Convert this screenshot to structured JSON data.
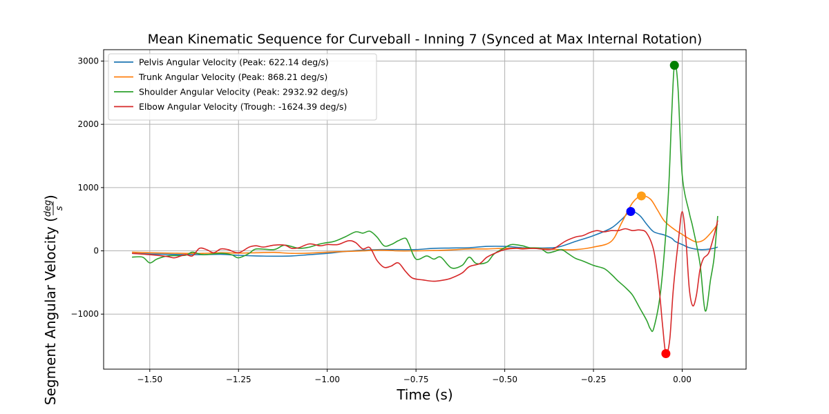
{
  "chart_data": {
    "type": "line",
    "title": "Mean Kinematic Sequence for Curveball - Inning 7 (Synced at Max Internal Rotation)",
    "xlabel": "Time (s)",
    "ylabel_prefix": "Segment Angular Velocity (",
    "ylabel_unit_num": "deg",
    "ylabel_unit_den": "s",
    "ylabel_suffix": ")",
    "xlim": [
      -1.63,
      0.18
    ],
    "ylim": [
      -1870,
      3180
    ],
    "xticks": [
      -1.5,
      -1.25,
      -1.0,
      -0.75,
      -0.5,
      -0.25,
      0.0
    ],
    "xtick_labels": [
      "−1.50",
      "−1.25",
      "−1.00",
      "−0.75",
      "−0.50",
      "−0.25",
      "0.00"
    ],
    "yticks": [
      -1000,
      0,
      1000,
      2000,
      3000
    ],
    "ytick_labels": [
      "−1000",
      "0",
      "1000",
      "2000",
      "3000"
    ],
    "grid": true,
    "legend_position": "top-left",
    "series": [
      {
        "name": "Pelvis Angular Velocity (Peak: 622.14 deg/s)",
        "color": "#1f77b4",
        "marker_color": "#0000ff",
        "peak": [
          -0.145,
          622.14
        ],
        "points": [
          [
            -1.55,
            -40
          ],
          [
            -1.5,
            -50
          ],
          [
            -1.45,
            -55
          ],
          [
            -1.4,
            -60
          ],
          [
            -1.35,
            -60
          ],
          [
            -1.3,
            -55
          ],
          [
            -1.25,
            -70
          ],
          [
            -1.2,
            -80
          ],
          [
            -1.15,
            -85
          ],
          [
            -1.1,
            -80
          ],
          [
            -1.05,
            -60
          ],
          [
            -1.0,
            -40
          ],
          [
            -0.95,
            -10
          ],
          [
            -0.9,
            10
          ],
          [
            -0.85,
            20
          ],
          [
            -0.8,
            20
          ],
          [
            -0.75,
            20
          ],
          [
            -0.7,
            40
          ],
          [
            -0.65,
            45
          ],
          [
            -0.6,
            50
          ],
          [
            -0.55,
            70
          ],
          [
            -0.5,
            70
          ],
          [
            -0.45,
            50
          ],
          [
            -0.4,
            45
          ],
          [
            -0.35,
            60
          ],
          [
            -0.3,
            150
          ],
          [
            -0.25,
            240
          ],
          [
            -0.2,
            360
          ],
          [
            -0.17,
            500
          ],
          [
            -0.145,
            622
          ],
          [
            -0.12,
            560
          ],
          [
            -0.1,
            420
          ],
          [
            -0.08,
            300
          ],
          [
            -0.05,
            250
          ],
          [
            -0.03,
            200
          ],
          [
            -0.02,
            150
          ],
          [
            0.0,
            100
          ],
          [
            0.02,
            50
          ],
          [
            0.05,
            20
          ],
          [
            0.08,
            30
          ],
          [
            0.1,
            60
          ]
        ]
      },
      {
        "name": "Trunk Angular Velocity (Peak: 868.21 deg/s)",
        "color": "#ff7f0e",
        "marker_color": "#ff9f1a",
        "peak": [
          -0.115,
          868.21
        ],
        "points": [
          [
            -1.55,
            -20
          ],
          [
            -1.5,
            -30
          ],
          [
            -1.45,
            -35
          ],
          [
            -1.4,
            -40
          ],
          [
            -1.35,
            -40
          ],
          [
            -1.3,
            -30
          ],
          [
            -1.25,
            -35
          ],
          [
            -1.2,
            -30
          ],
          [
            -1.15,
            -25
          ],
          [
            -1.1,
            -40
          ],
          [
            -1.05,
            -35
          ],
          [
            -1.0,
            -20
          ],
          [
            -0.95,
            -10
          ],
          [
            -0.9,
            0
          ],
          [
            -0.85,
            10
          ],
          [
            -0.8,
            0
          ],
          [
            -0.75,
            0
          ],
          [
            -0.7,
            5
          ],
          [
            -0.65,
            15
          ],
          [
            -0.6,
            30
          ],
          [
            -0.55,
            30
          ],
          [
            -0.5,
            40
          ],
          [
            -0.45,
            40
          ],
          [
            -0.4,
            35
          ],
          [
            -0.35,
            20
          ],
          [
            -0.3,
            20
          ],
          [
            -0.25,
            60
          ],
          [
            -0.2,
            150
          ],
          [
            -0.17,
            450
          ],
          [
            -0.14,
            760
          ],
          [
            -0.115,
            868
          ],
          [
            -0.09,
            820
          ],
          [
            -0.07,
            650
          ],
          [
            -0.05,
            470
          ],
          [
            -0.02,
            330
          ],
          [
            0.0,
            260
          ],
          [
            0.02,
            190
          ],
          [
            0.04,
            140
          ],
          [
            0.06,
            170
          ],
          [
            0.08,
            280
          ],
          [
            0.1,
            420
          ]
        ]
      },
      {
        "name": "Shoulder Angular Velocity (Peak: 2932.92 deg/s)",
        "color": "#2ca02c",
        "marker_color": "#008000",
        "peak": [
          -0.022,
          2932.92
        ],
        "points": [
          [
            -1.55,
            -100
          ],
          [
            -1.52,
            -100
          ],
          [
            -1.5,
            -190
          ],
          [
            -1.48,
            -130
          ],
          [
            -1.45,
            -80
          ],
          [
            -1.4,
            -70
          ],
          [
            -1.38,
            -20
          ],
          [
            -1.35,
            -60
          ],
          [
            -1.3,
            -40
          ],
          [
            -1.27,
            -60
          ],
          [
            -1.25,
            -110
          ],
          [
            -1.22,
            -40
          ],
          [
            -1.2,
            30
          ],
          [
            -1.15,
            20
          ],
          [
            -1.12,
            90
          ],
          [
            -1.08,
            40
          ],
          [
            -1.05,
            60
          ],
          [
            -1.02,
            110
          ],
          [
            -1.0,
            130
          ],
          [
            -0.98,
            150
          ],
          [
            -0.95,
            220
          ],
          [
            -0.92,
            300
          ],
          [
            -0.9,
            280
          ],
          [
            -0.88,
            310
          ],
          [
            -0.86,
            220
          ],
          [
            -0.84,
            80
          ],
          [
            -0.82,
            100
          ],
          [
            -0.8,
            160
          ],
          [
            -0.78,
            200
          ],
          [
            -0.77,
            110
          ],
          [
            -0.75,
            -130
          ],
          [
            -0.72,
            -80
          ],
          [
            -0.7,
            -130
          ],
          [
            -0.68,
            -100
          ],
          [
            -0.65,
            -270
          ],
          [
            -0.62,
            -230
          ],
          [
            -0.6,
            -100
          ],
          [
            -0.58,
            -200
          ],
          [
            -0.55,
            -180
          ],
          [
            -0.53,
            -50
          ],
          [
            -0.5,
            50
          ],
          [
            -0.48,
            100
          ],
          [
            -0.45,
            80
          ],
          [
            -0.43,
            50
          ],
          [
            -0.4,
            40
          ],
          [
            -0.38,
            -30
          ],
          [
            -0.36,
            -10
          ],
          [
            -0.34,
            20
          ],
          [
            -0.32,
            -50
          ],
          [
            -0.3,
            -120
          ],
          [
            -0.28,
            -160
          ],
          [
            -0.25,
            -230
          ],
          [
            -0.22,
            -280
          ],
          [
            -0.2,
            -370
          ],
          [
            -0.18,
            -480
          ],
          [
            -0.16,
            -580
          ],
          [
            -0.14,
            -700
          ],
          [
            -0.12,
            -900
          ],
          [
            -0.1,
            -1100
          ],
          [
            -0.09,
            -1230
          ],
          [
            -0.08,
            -1220
          ],
          [
            -0.06,
            -600
          ],
          [
            -0.04,
            800
          ],
          [
            -0.03,
            2100
          ],
          [
            -0.022,
            2932
          ],
          [
            -0.012,
            2600
          ],
          [
            0.0,
            1200
          ],
          [
            0.02,
            600
          ],
          [
            0.03,
            370
          ],
          [
            0.05,
            -200
          ],
          [
            0.065,
            -950
          ],
          [
            0.08,
            -450
          ],
          [
            0.09,
            -100
          ],
          [
            0.1,
            550
          ]
        ]
      },
      {
        "name": "Elbow Angular Velocity (Trough: -1624.39 deg/s)",
        "color": "#d62728",
        "marker_color": "#ff0000",
        "trough": [
          -0.046,
          -1624.39
        ],
        "points": [
          [
            -1.55,
            -40
          ],
          [
            -1.5,
            -60
          ],
          [
            -1.45,
            -90
          ],
          [
            -1.43,
            -110
          ],
          [
            -1.4,
            -60
          ],
          [
            -1.38,
            -80
          ],
          [
            -1.36,
            40
          ],
          [
            -1.34,
            20
          ],
          [
            -1.32,
            -30
          ],
          [
            -1.3,
            30
          ],
          [
            -1.28,
            20
          ],
          [
            -1.25,
            -30
          ],
          [
            -1.22,
            60
          ],
          [
            -1.2,
            80
          ],
          [
            -1.18,
            60
          ],
          [
            -1.15,
            90
          ],
          [
            -1.12,
            90
          ],
          [
            -1.1,
            40
          ],
          [
            -1.08,
            50
          ],
          [
            -1.05,
            110
          ],
          [
            -1.02,
            80
          ],
          [
            -1.0,
            100
          ],
          [
            -0.97,
            100
          ],
          [
            -0.94,
            160
          ],
          [
            -0.92,
            130
          ],
          [
            -0.9,
            30
          ],
          [
            -0.88,
            50
          ],
          [
            -0.86,
            -150
          ],
          [
            -0.84,
            -260
          ],
          [
            -0.82,
            -240
          ],
          [
            -0.8,
            -190
          ],
          [
            -0.78,
            -320
          ],
          [
            -0.76,
            -430
          ],
          [
            -0.73,
            -460
          ],
          [
            -0.7,
            -480
          ],
          [
            -0.67,
            -460
          ],
          [
            -0.65,
            -430
          ],
          [
            -0.62,
            -350
          ],
          [
            -0.6,
            -250
          ],
          [
            -0.57,
            -200
          ],
          [
            -0.55,
            -100
          ],
          [
            -0.52,
            -20
          ],
          [
            -0.5,
            20
          ],
          [
            -0.47,
            40
          ],
          [
            -0.45,
            30
          ],
          [
            -0.42,
            40
          ],
          [
            -0.4,
            30
          ],
          [
            -0.38,
            20
          ],
          [
            -0.36,
            40
          ],
          [
            -0.33,
            150
          ],
          [
            -0.3,
            220
          ],
          [
            -0.28,
            240
          ],
          [
            -0.26,
            290
          ],
          [
            -0.24,
            320
          ],
          [
            -0.22,
            300
          ],
          [
            -0.2,
            320
          ],
          [
            -0.18,
            320
          ],
          [
            -0.16,
            350
          ],
          [
            -0.14,
            320
          ],
          [
            -0.12,
            330
          ],
          [
            -0.1,
            280
          ],
          [
            -0.08,
            0
          ],
          [
            -0.065,
            -600
          ],
          [
            -0.055,
            -1200
          ],
          [
            -0.046,
            -1624
          ],
          [
            -0.035,
            -1400
          ],
          [
            -0.025,
            -600
          ],
          [
            -0.01,
            200
          ],
          [
            0.0,
            620
          ],
          [
            0.01,
            200
          ],
          [
            0.02,
            -600
          ],
          [
            0.03,
            -870
          ],
          [
            0.04,
            -700
          ],
          [
            0.05,
            -300
          ],
          [
            0.06,
            -120
          ],
          [
            0.075,
            -30
          ],
          [
            0.09,
            250
          ],
          [
            0.1,
            480
          ]
        ]
      }
    ]
  }
}
